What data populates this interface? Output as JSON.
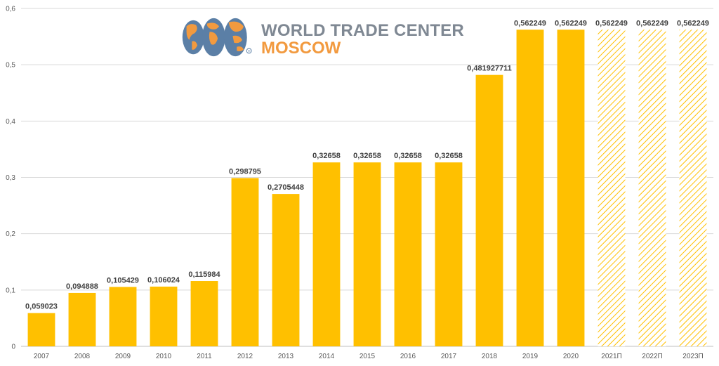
{
  "logo": {
    "line1": "WORLD TRADE CENTER",
    "line2": "MOSCOW",
    "mark": "®"
  },
  "colors": {
    "bar": "#ffc000",
    "forecast_hatch": "#ffc000",
    "grid": "#d9d9d9",
    "logo_globe": "#5b7fa6",
    "logo_land": "#f29a3f"
  },
  "chart_data": {
    "type": "bar",
    "title": "",
    "xlabel": "",
    "ylabel": "",
    "categories": [
      "2007",
      "2008",
      "2009",
      "2010",
      "2011",
      "2012",
      "2013",
      "2014",
      "2015",
      "2016",
      "2017",
      "2018",
      "2019",
      "2020",
      "2021П",
      "2022П",
      "2023П"
    ],
    "values": [
      0.059023,
      0.094888,
      0.105429,
      0.106024,
      0.115984,
      0.298795,
      0.2705448,
      0.32658,
      0.32658,
      0.32658,
      0.32658,
      0.481927711,
      0.562249,
      0.562249,
      0.562249,
      0.562249,
      0.562249
    ],
    "data_labels": [
      "0,059023",
      "0,094888",
      "0,105429",
      "0,106024",
      "0,115984",
      "0,298795",
      "0,2705448",
      "0,32658",
      "0,32658",
      "0,32658",
      "0,32658",
      "0,481927711",
      "0,562249",
      "0,562249",
      "0,562249",
      "0,562249",
      "0,562249"
    ],
    "forecast": [
      false,
      false,
      false,
      false,
      false,
      false,
      false,
      false,
      false,
      false,
      false,
      false,
      false,
      false,
      true,
      true,
      true
    ],
    "ylim": [
      0,
      0.6
    ],
    "yticks": [
      0,
      0.1,
      0.2,
      0.3,
      0.4,
      0.5,
      0.6
    ],
    "ytick_labels": [
      "0",
      "0,1",
      "0,2",
      "0,3",
      "0,4",
      "0,5",
      "0,6"
    ],
    "grid": true,
    "legend": "none"
  }
}
